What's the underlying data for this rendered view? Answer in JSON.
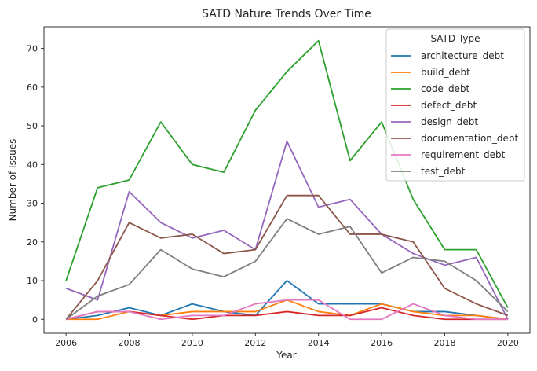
{
  "chart_data": {
    "type": "line",
    "title": "SATD Nature Trends Over Time",
    "xlabel": "Year",
    "ylabel": "Number of Issues",
    "x": [
      2006,
      2007,
      2008,
      2009,
      2010,
      2011,
      2012,
      2013,
      2014,
      2015,
      2016,
      2017,
      2018,
      2019,
      2020
    ],
    "xticks": [
      "2006",
      "2008",
      "2010",
      "2012",
      "2014",
      "2016",
      "2018",
      "2020"
    ],
    "yticks": [
      "0",
      "10",
      "20",
      "30",
      "40",
      "50",
      "60",
      "70"
    ],
    "xlim": [
      2005.3,
      2020.7
    ],
    "ylim": [
      -3.6,
      75.6
    ],
    "grid": false,
    "legend": {
      "title": "SATD Type",
      "placement": "top-right"
    },
    "series": [
      {
        "name": "architecture_debt",
        "color": "#1f77b4",
        "values": [
          0,
          1,
          3,
          1,
          4,
          2,
          1,
          10,
          4,
          4,
          4,
          2,
          2,
          1,
          0
        ]
      },
      {
        "name": "build_debt",
        "color": "#ff7f0e",
        "values": [
          0,
          0,
          2,
          1,
          2,
          2,
          2,
          5,
          2,
          1,
          4,
          2,
          1,
          1,
          0
        ]
      },
      {
        "name": "code_debt",
        "color": "#2ca02c",
        "values": [
          10,
          34,
          36,
          51,
          40,
          38,
          54,
          64,
          72,
          41,
          51,
          31,
          18,
          18,
          3
        ]
      },
      {
        "name": "defect_debt",
        "color": "#d62728",
        "values": [
          0,
          2,
          2,
          1,
          0,
          1,
          1,
          2,
          1,
          1,
          3,
          1,
          0,
          0,
          0
        ]
      },
      {
        "name": "design_debt",
        "color": "#9467bd",
        "values": [
          8,
          5,
          33,
          25,
          21,
          23,
          18,
          46,
          29,
          31,
          22,
          17,
          14,
          16,
          0
        ]
      },
      {
        "name": "documentation_debt",
        "color": "#8c564b",
        "values": [
          0,
          10,
          25,
          21,
          22,
          17,
          18,
          32,
          32,
          22,
          22,
          20,
          8,
          4,
          1
        ]
      },
      {
        "name": "requirement_debt",
        "color": "#e377c2",
        "values": [
          0,
          2,
          2,
          0,
          1,
          1,
          4,
          5,
          5,
          0,
          0,
          4,
          1,
          0,
          0
        ]
      },
      {
        "name": "test_debt",
        "color": "#7f7f7f",
        "values": [
          0,
          6,
          9,
          18,
          13,
          11,
          15,
          26,
          22,
          24,
          12,
          16,
          15,
          10,
          2
        ]
      }
    ]
  }
}
